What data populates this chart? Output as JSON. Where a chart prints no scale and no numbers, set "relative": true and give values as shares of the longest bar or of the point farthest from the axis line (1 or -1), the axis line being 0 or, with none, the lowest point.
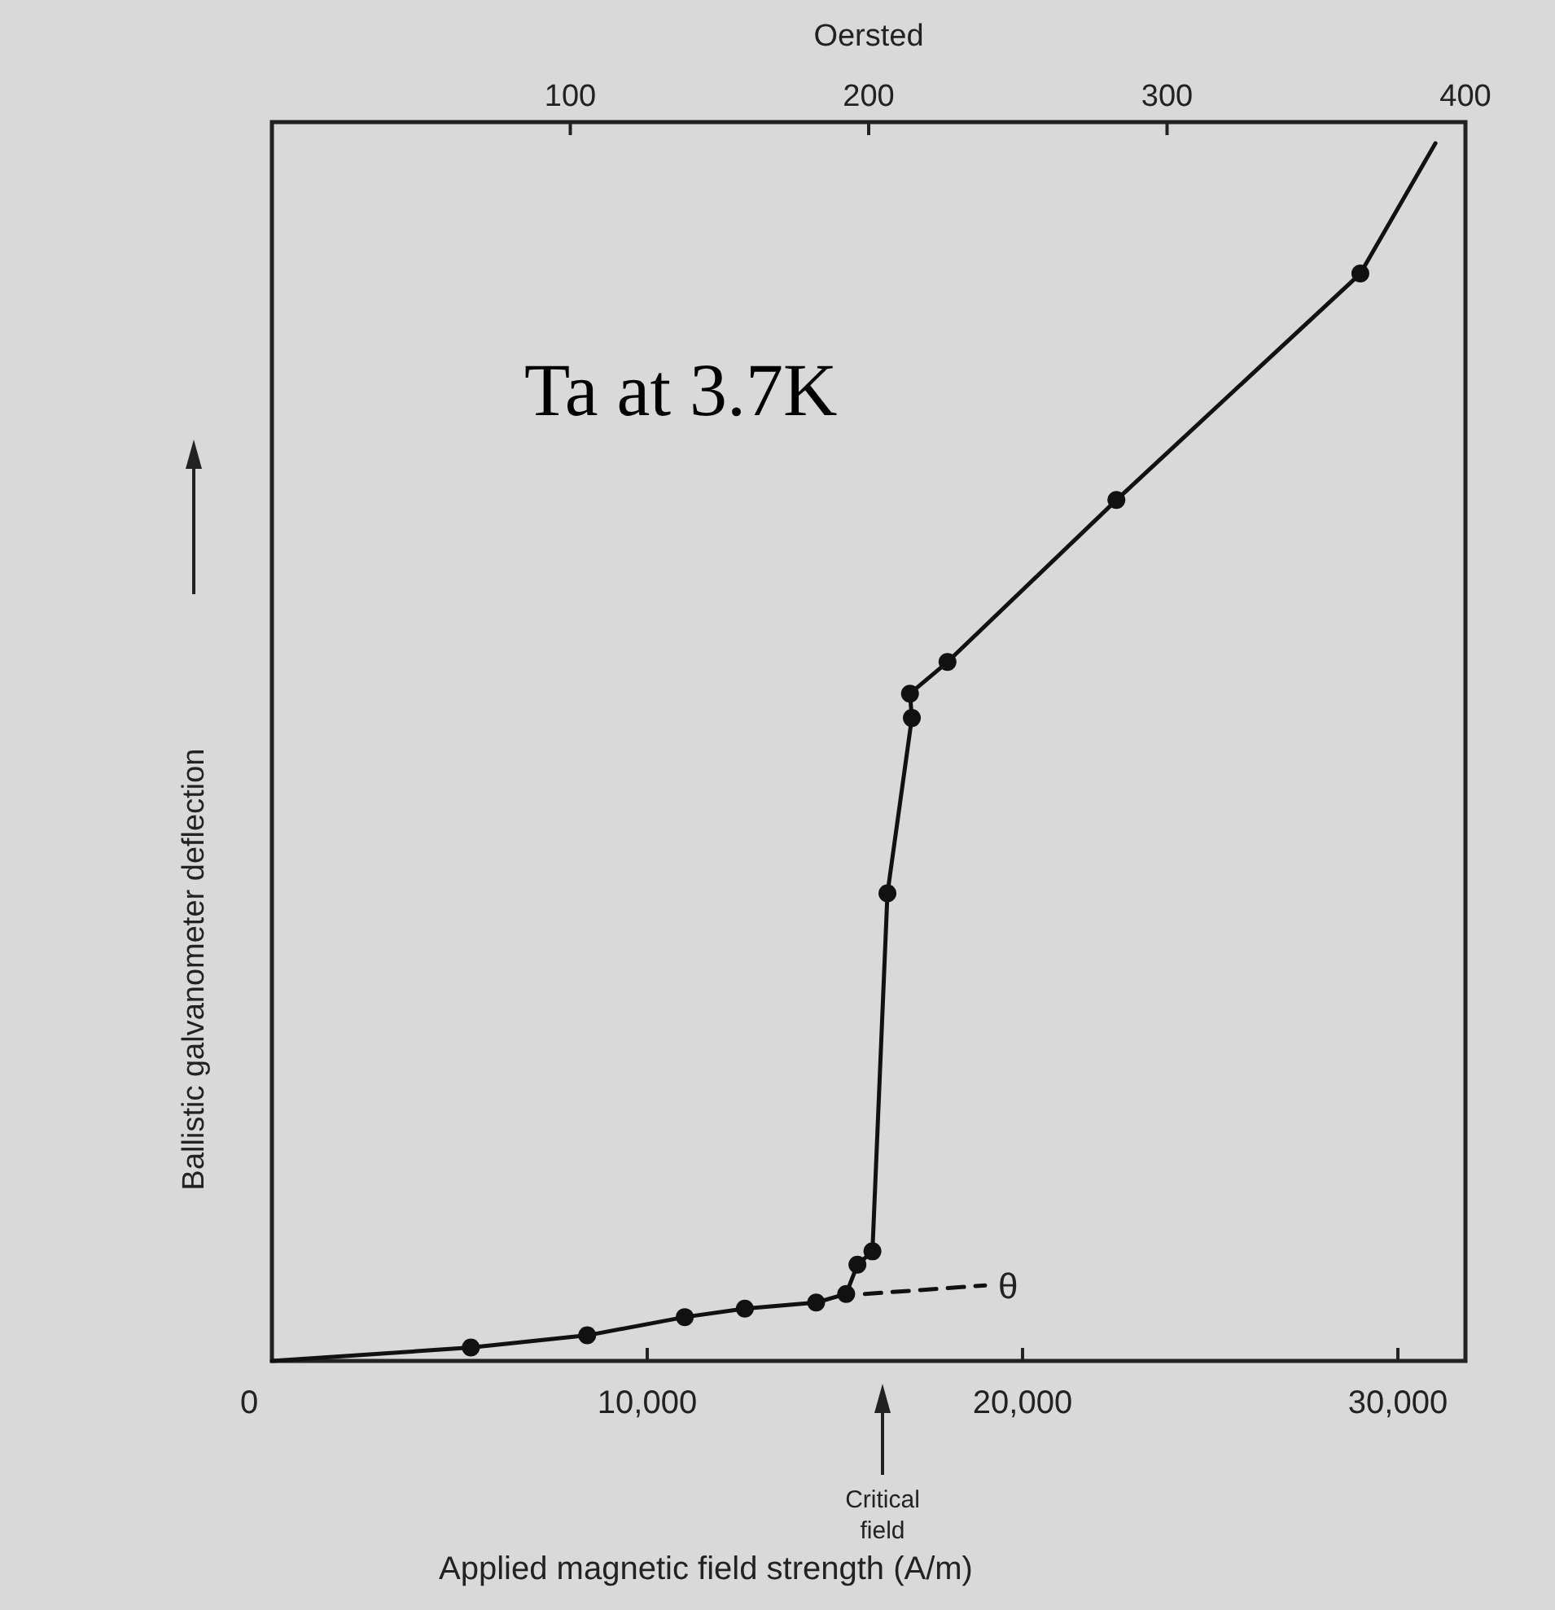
{
  "chart_data": {
    "type": "line",
    "title": "Ta at 3.7K",
    "xlabel": "Applied magnetic field strength (A/m)",
    "ylabel": "Ballistic galvanometer deflection",
    "x2label": "Oersted",
    "relative": true,
    "xlim": [
      0,
      31800
    ],
    "xticks": [
      0,
      {
        "value": 10000,
        "label": "10,000"
      },
      {
        "value": 20000,
        "label": "20,000"
      },
      {
        "value": 30000,
        "label": "30,000"
      }
    ],
    "x2lim": [
      0,
      400
    ],
    "x2ticks": [
      100,
      200,
      300,
      400
    ],
    "series": [
      {
        "color": "#111111",
        "marker": "none",
        "line_style": "solid",
        "x": [
          0,
          5300,
          8400,
          11000,
          12600,
          14500,
          15300,
          15600,
          16000,
          16400,
          17050,
          17000,
          18000,
          22500,
          29000,
          31000
        ],
        "values": [
          0,
          0.011,
          0.021,
          0.036,
          0.043,
          0.048,
          0.055,
          0.079,
          0.09,
          0.384,
          0.528,
          0.548,
          0.574,
          0.707,
          0.893,
          1
        ]
      },
      {
        "type": "scatter",
        "color": "#111111",
        "marker": "circle",
        "x": [
          5300,
          8400,
          11000,
          12600,
          14500,
          15300,
          15600,
          16000,
          16400,
          17050,
          17000,
          18000,
          22500,
          29000
        ],
        "values": [
          0.011,
          0.021,
          0.036,
          0.043,
          0.048,
          0.055,
          0.079,
          0.09,
          0.384,
          0.528,
          0.548,
          0.574,
          0.707,
          0.893
        ]
      },
      {
        "type": "line",
        "color": "#111111",
        "marker": "none",
        "line_style": "dashed",
        "x": [
          15800,
          19000
        ],
        "values": [
          0.055,
          0.062
        ]
      }
    ],
    "annotations": [
      "θ",
      "Critical field"
    ],
    "grid": false
  }
}
